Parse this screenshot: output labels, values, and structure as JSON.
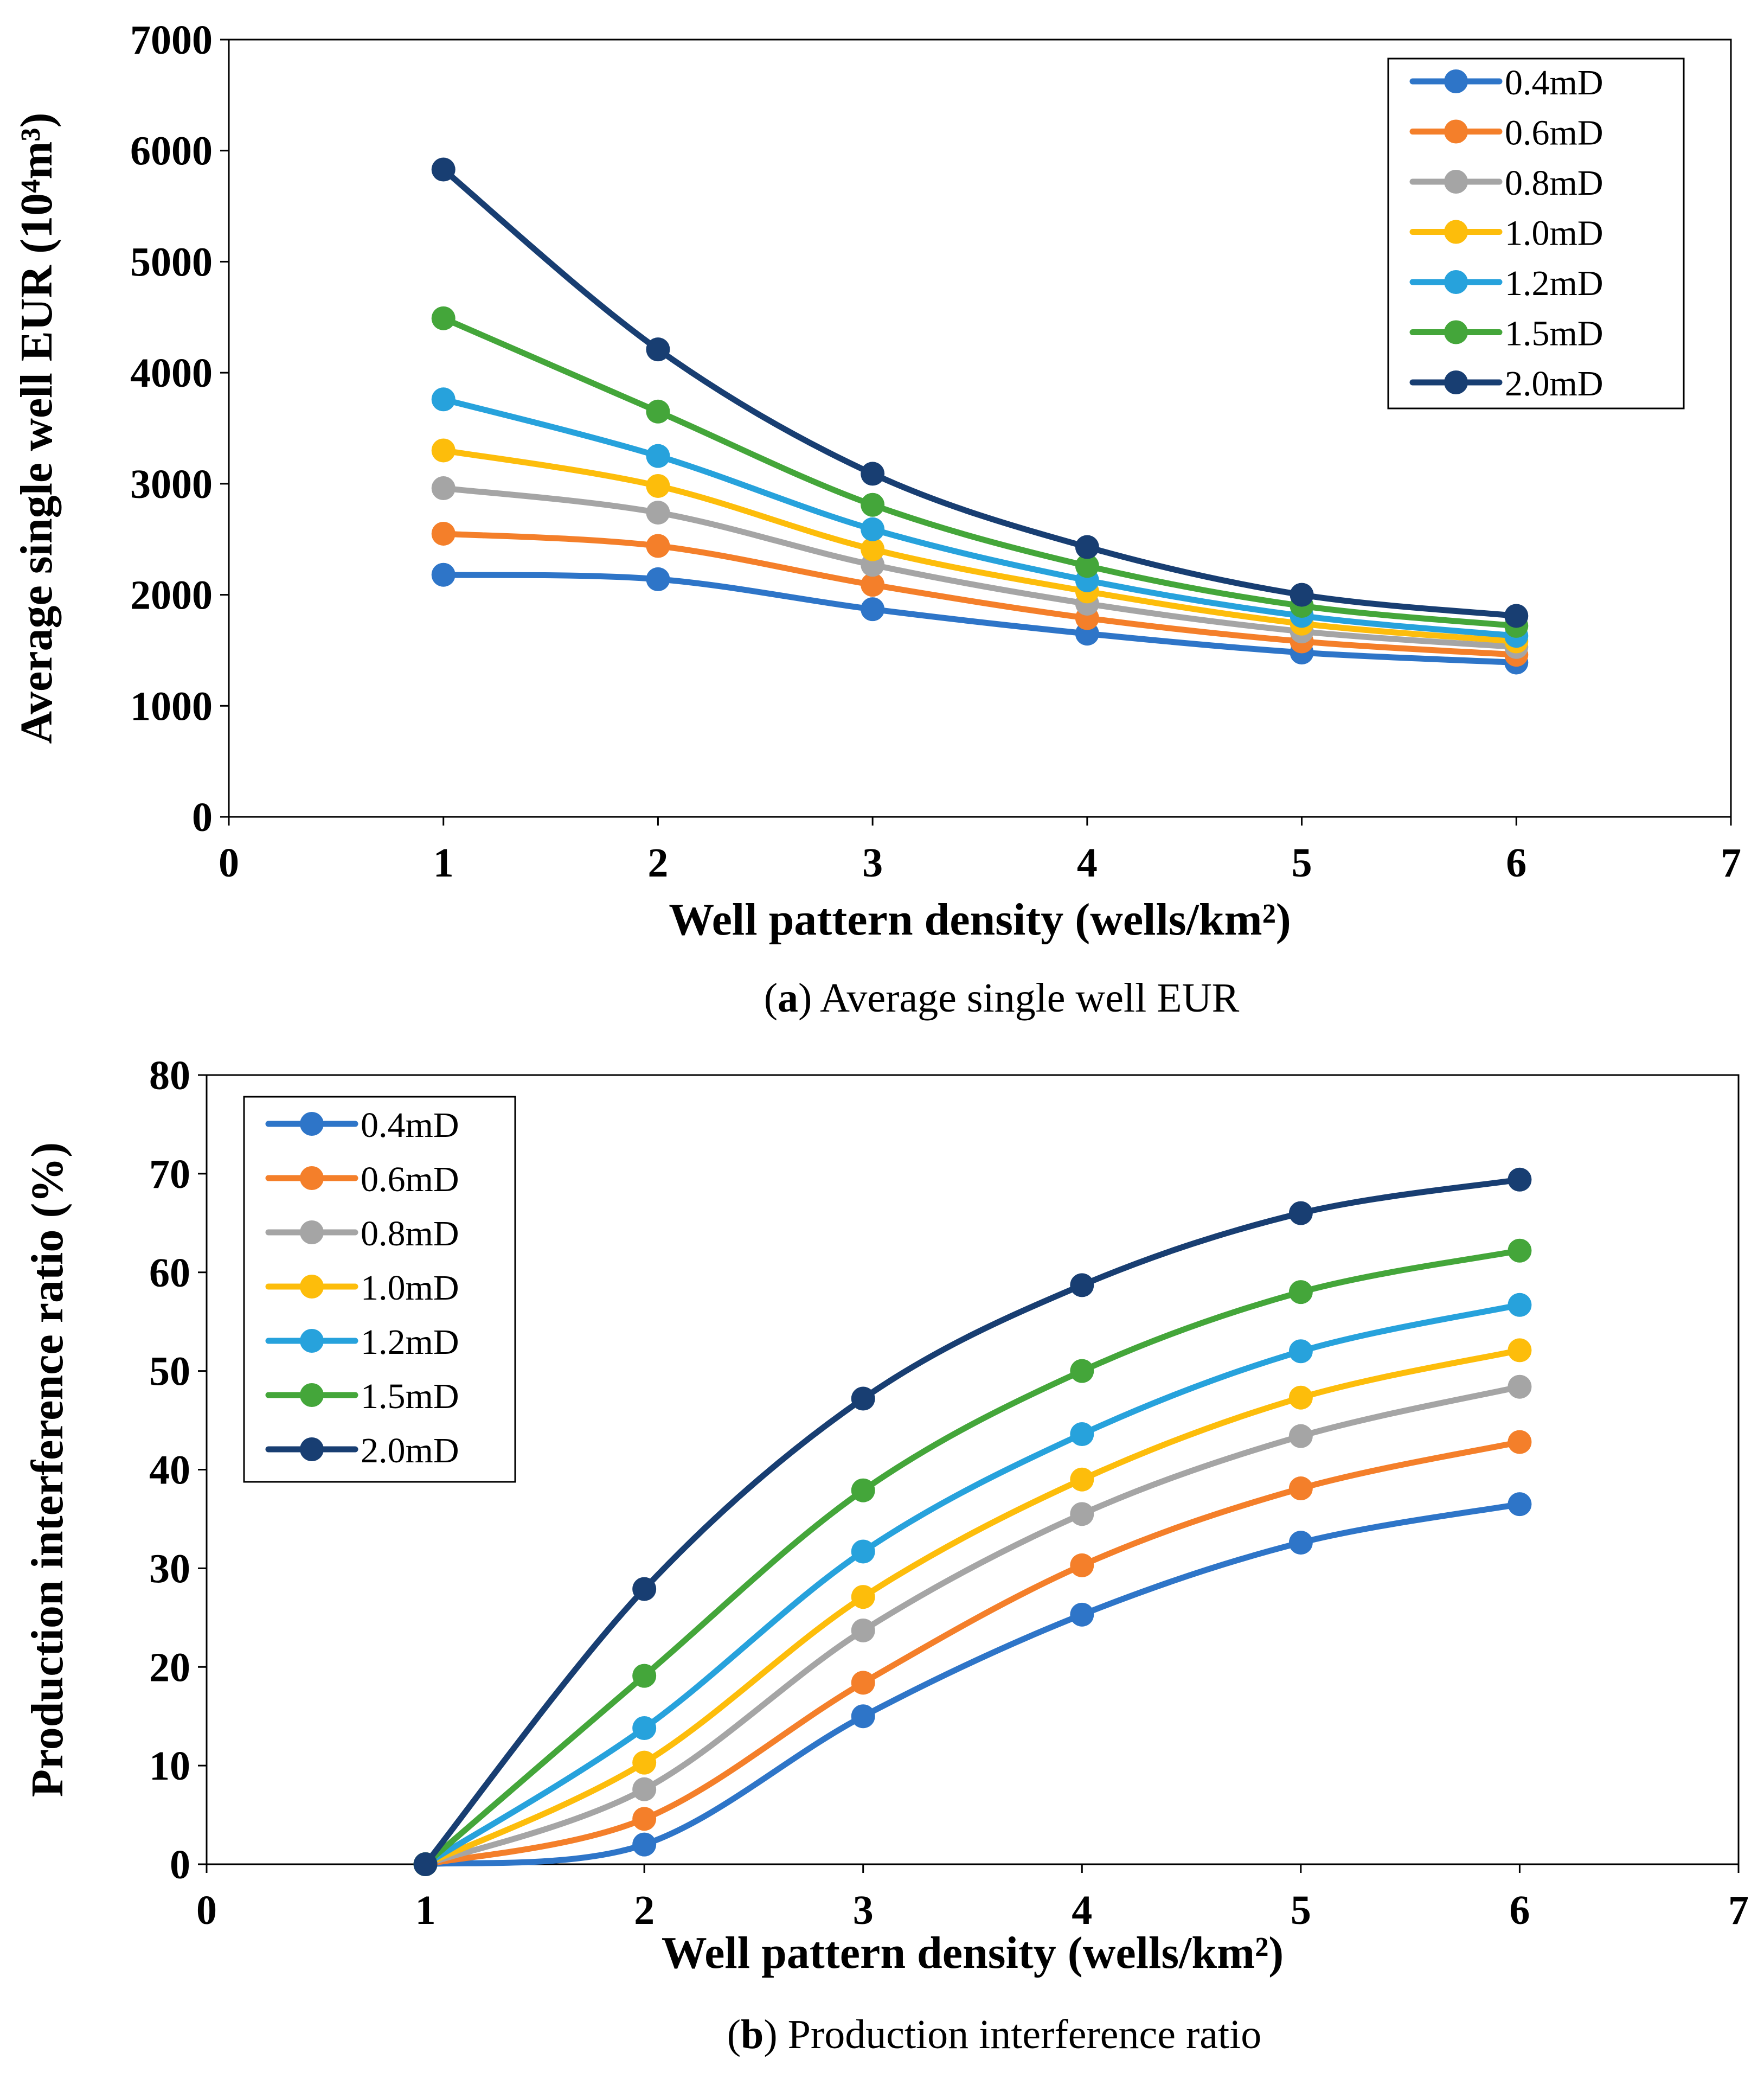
{
  "chart_data": [
    {
      "type": "line",
      "caption_letter": "a",
      "caption_text": ") Average single well EUR",
      "caption_open": "(",
      "xlabel": "Well pattern density (wells/km²)",
      "ylabel": "Average single well EUR (10⁴m³)",
      "xlim": [
        0,
        7
      ],
      "ylim": [
        0,
        7000
      ],
      "xticks": [
        "0",
        "1",
        "2",
        "3",
        "4",
        "5",
        "6",
        "7"
      ],
      "yticks": [
        "0",
        "1000",
        "2000",
        "3000",
        "4000",
        "5000",
        "6000",
        "7000"
      ],
      "x": [
        1,
        2,
        3,
        4,
        5,
        6
      ],
      "legend_position": "top-right",
      "grid": false,
      "series": [
        {
          "name": "0.4mD",
          "color": "#2e75c8",
          "values": [
            2180,
            2140,
            1870,
            1650,
            1480,
            1390
          ]
        },
        {
          "name": "0.6mD",
          "color": "#f47f2a",
          "values": [
            2550,
            2440,
            2090,
            1790,
            1580,
            1460
          ]
        },
        {
          "name": "0.8mD",
          "color": "#a5a5a5",
          "values": [
            2960,
            2740,
            2270,
            1920,
            1670,
            1530
          ]
        },
        {
          "name": "1.0mD",
          "color": "#fdbd0b",
          "values": [
            3300,
            2980,
            2410,
            2030,
            1740,
            1580
          ]
        },
        {
          "name": "1.2mD",
          "color": "#27a2dc",
          "values": [
            3760,
            3250,
            2590,
            2130,
            1810,
            1630
          ]
        },
        {
          "name": "1.5mD",
          "color": "#44a63a",
          "values": [
            4490,
            3650,
            2810,
            2260,
            1900,
            1720
          ]
        },
        {
          "name": "2.0mD",
          "color": "#183e72",
          "values": [
            5830,
            4210,
            3090,
            2430,
            2000,
            1810
          ]
        }
      ]
    },
    {
      "type": "line",
      "caption_letter": "b",
      "caption_text": ") Production interference ratio",
      "caption_open": "(",
      "xlabel": "Well pattern density (wells/km²)",
      "ylabel": "Production interference ratio (%)",
      "xlim": [
        0,
        7
      ],
      "ylim": [
        0,
        80
      ],
      "xticks": [
        "0",
        "1",
        "2",
        "3",
        "4",
        "5",
        "6",
        "7"
      ],
      "yticks": [
        "0",
        "10",
        "20",
        "30",
        "40",
        "50",
        "60",
        "70",
        "80"
      ],
      "x": [
        1,
        2,
        3,
        4,
        5,
        6
      ],
      "legend_position": "top-left",
      "grid": false,
      "series": [
        {
          "name": "0.4mD",
          "color": "#2e75c8",
          "values": [
            0,
            2,
            15,
            25.3,
            32.6,
            36.5
          ]
        },
        {
          "name": "0.6mD",
          "color": "#f47f2a",
          "values": [
            0,
            4.6,
            18.4,
            30.3,
            38.1,
            42.8
          ]
        },
        {
          "name": "0.8mD",
          "color": "#a5a5a5",
          "values": [
            0,
            7.6,
            23.7,
            35.5,
            43.4,
            48.4
          ]
        },
        {
          "name": "1.0mD",
          "color": "#fdbd0b",
          "values": [
            0,
            10.3,
            27.1,
            39,
            47.3,
            52.1
          ]
        },
        {
          "name": "1.2mD",
          "color": "#27a2dc",
          "values": [
            0,
            13.8,
            31.7,
            43.6,
            52,
            56.7
          ]
        },
        {
          "name": "1.5mD",
          "color": "#44a63a",
          "values": [
            0,
            19.1,
            37.9,
            50,
            58,
            62.2
          ]
        },
        {
          "name": "2.0mD",
          "color": "#183e72",
          "values": [
            0,
            27.9,
            47.2,
            58.7,
            66,
            69.4
          ]
        }
      ]
    }
  ]
}
